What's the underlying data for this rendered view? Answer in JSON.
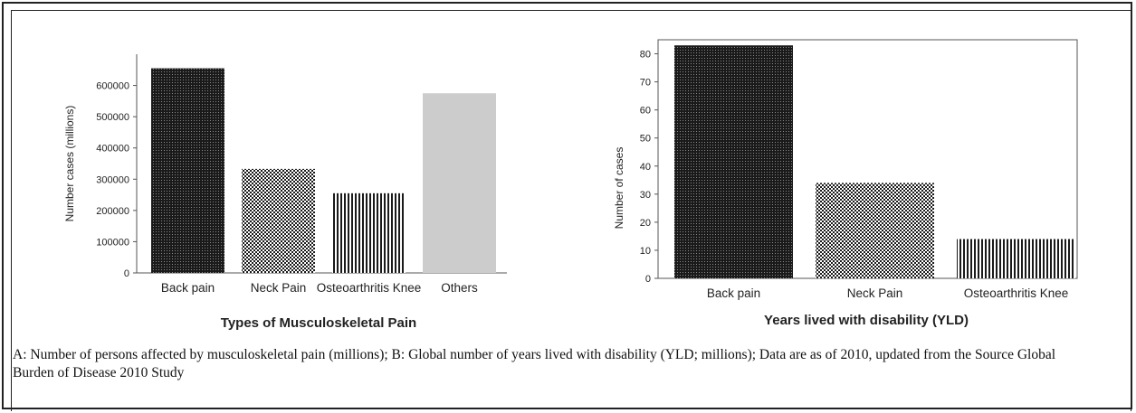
{
  "caption": "A: Number of persons affected by musculoskeletal pain (millions); B: Global number of years lived with disability (YLD; millions); Data are as of 2010, updated from the Source Global Burden of Disease 2010 Study",
  "chart_data": [
    {
      "type": "bar",
      "title": "",
      "categories": [
        "Back pain",
        "Neck Pain",
        "Osteoarthritis Knee",
        "Others"
      ],
      "values": [
        655000,
        333000,
        255000,
        575000
      ],
      "xlabel": "Types of Musculoskeletal Pain",
      "ylabel": "Number cases (millions)",
      "ylim": [
        0,
        700000
      ],
      "yticks": [
        0,
        100000,
        200000,
        300000,
        400000,
        500000,
        600000
      ],
      "ytick_labels": [
        "0",
        "100000",
        "200000",
        "300000",
        "400000",
        "500000",
        "600000"
      ],
      "patterns": [
        "dense-dots",
        "checker",
        "vertical-lines",
        "solid-light-gray"
      ],
      "grid": false
    },
    {
      "type": "bar",
      "title": "",
      "categories": [
        "Back pain",
        "Neck Pain",
        "Osteoarthritis Knee"
      ],
      "values": [
        83,
        34,
        14
      ],
      "xlabel": "Years lived with disability (YLD)",
      "ylabel": "Number of cases",
      "ylim": [
        0,
        85
      ],
      "yticks": [
        0,
        10,
        20,
        30,
        40,
        50,
        60,
        70,
        80
      ],
      "ytick_labels": [
        "0",
        "10",
        "20",
        "30",
        "40",
        "50",
        "60",
        "70",
        "80"
      ],
      "patterns": [
        "dense-dots",
        "checker",
        "vertical-lines"
      ],
      "grid": false
    }
  ]
}
